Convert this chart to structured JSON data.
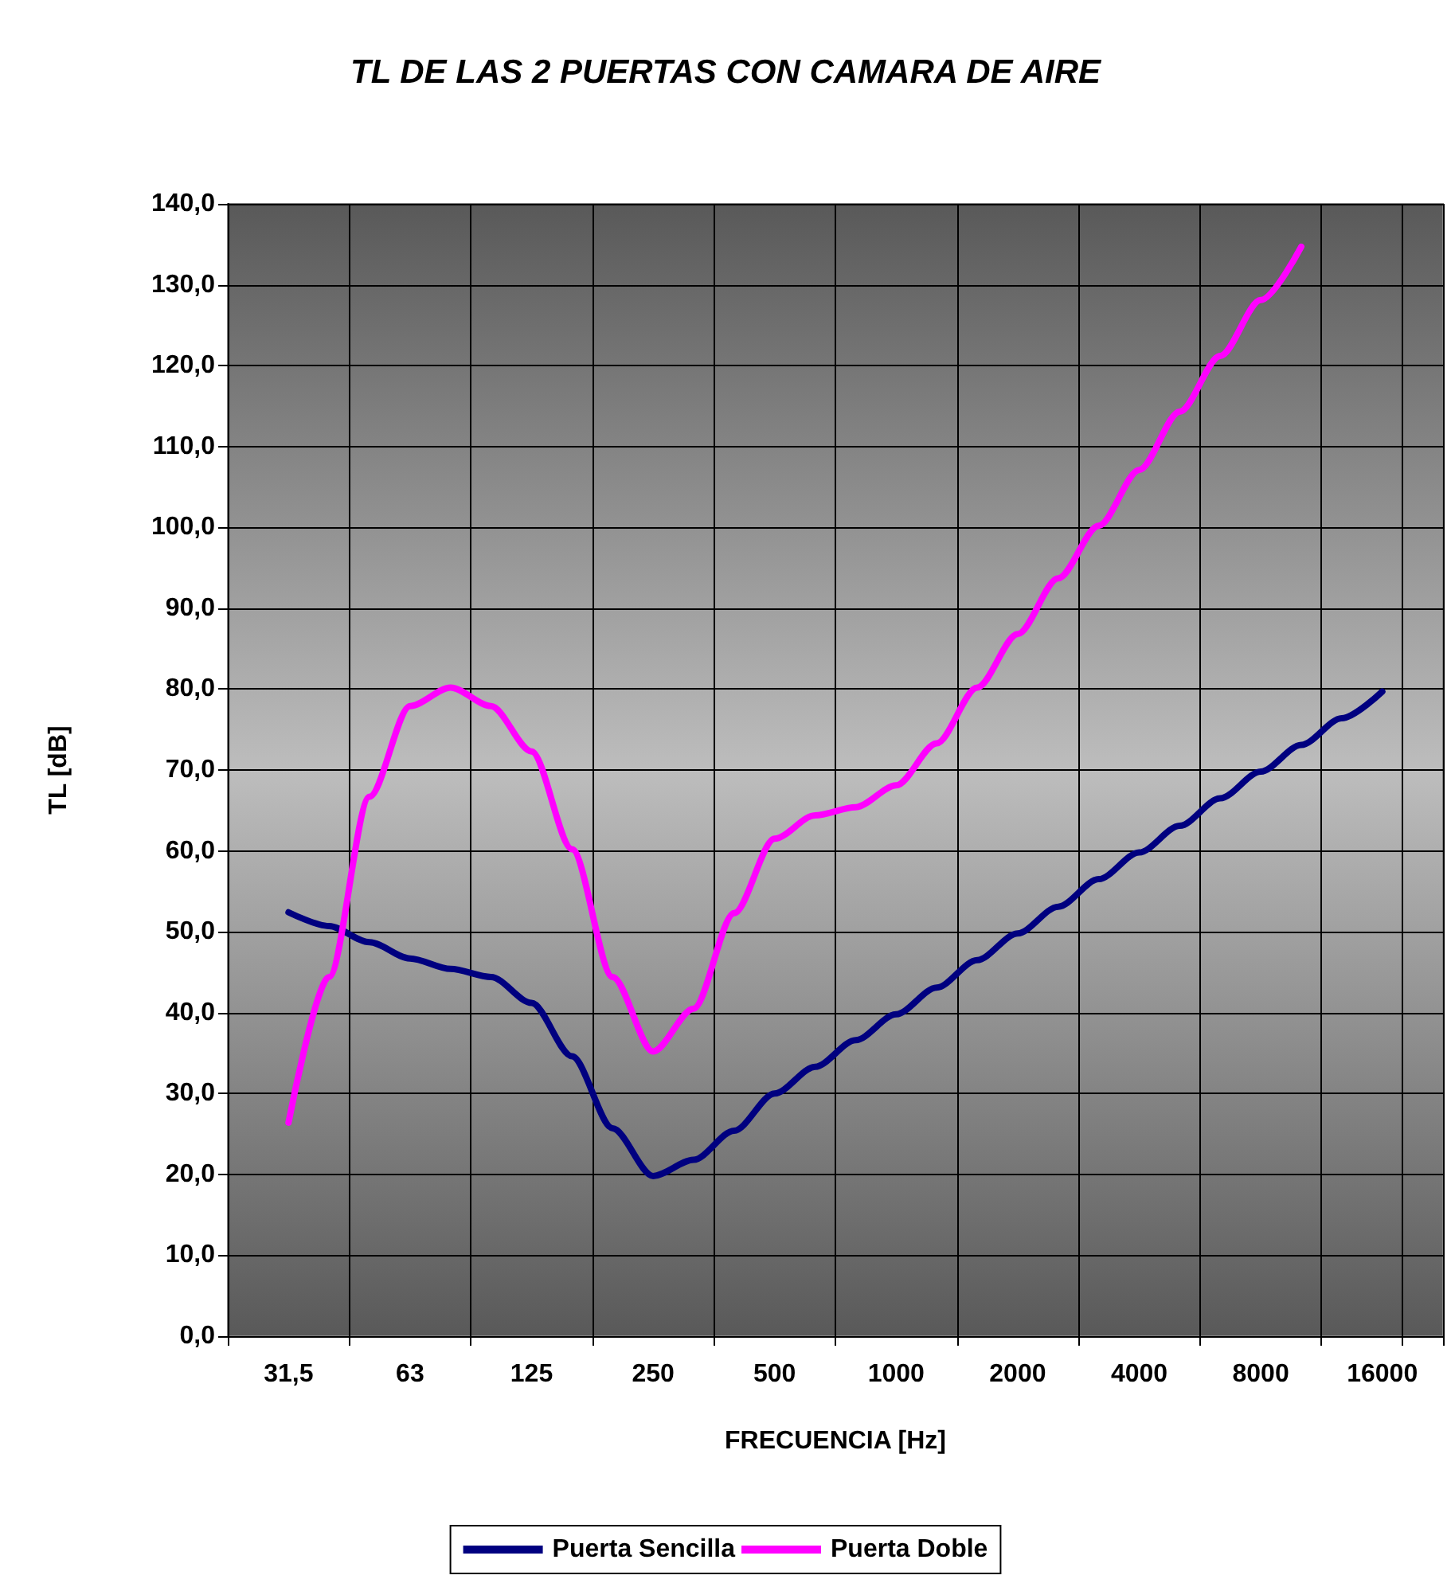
{
  "chart_data": {
    "type": "line",
    "title": "TL DE LAS 2 PUERTAS CON CAMARA DE AIRE",
    "xlabel": "FRECUENCIA [Hz]",
    "ylabel": "TL [dB]",
    "categories": [
      null,
      "31,5",
      null,
      null,
      "63",
      null,
      null,
      "125",
      null,
      null,
      "250",
      null,
      null,
      "500",
      null,
      null,
      "1000",
      null,
      null,
      "2000",
      null,
      null,
      "4000",
      null,
      null,
      "8000",
      null,
      null,
      "16000",
      null
    ],
    "series": [
      {
        "name": "Puerta Sencilla",
        "color": "#000080",
        "values": [
          null,
          52.4,
          50.7,
          48.7,
          46.7,
          45.4,
          44.4,
          41.2,
          34.6,
          25.7,
          19.8,
          21.8,
          25.4,
          30.0,
          33.3,
          36.6,
          39.8,
          43.1,
          46.5,
          49.8,
          53.1,
          56.5,
          59.8,
          63.1,
          66.5,
          69.8,
          73.1,
          76.4,
          79.7,
          null
        ]
      },
      {
        "name": "Puerta Doble",
        "color": "#ff00ff",
        "values": [
          null,
          26.4,
          44.4,
          66.7,
          77.9,
          80.2,
          77.9,
          72.3,
          60.2,
          44.4,
          35.2,
          40.5,
          52.3,
          61.5,
          64.4,
          65.4,
          68.1,
          73.3,
          80.2,
          86.8,
          93.7,
          100.2,
          107.1,
          114.3,
          121.2,
          128.1,
          134.7,
          null,
          null,
          null
        ]
      }
    ],
    "ylim": [
      0,
      140
    ],
    "yticks": [
      {
        "value": 0,
        "label": "0,0"
      },
      {
        "value": 10,
        "label": "10,0"
      },
      {
        "value": 20,
        "label": "20,0"
      },
      {
        "value": 30,
        "label": "30,0"
      },
      {
        "value": 40,
        "label": "40,0"
      },
      {
        "value": 50,
        "label": "50,0"
      },
      {
        "value": 60,
        "label": "60,0"
      },
      {
        "value": 70,
        "label": "70,0"
      },
      {
        "value": 80,
        "label": "80,0"
      },
      {
        "value": 90,
        "label": "90,0"
      },
      {
        "value": 100,
        "label": "100,0"
      },
      {
        "value": 110,
        "label": "110,0"
      },
      {
        "value": 120,
        "label": "120,0"
      },
      {
        "value": 130,
        "label": "130,0"
      },
      {
        "value": 140,
        "label": "140,0"
      }
    ],
    "grid": true,
    "legend": "bottom",
    "marker": "none",
    "line_style": "solid"
  }
}
